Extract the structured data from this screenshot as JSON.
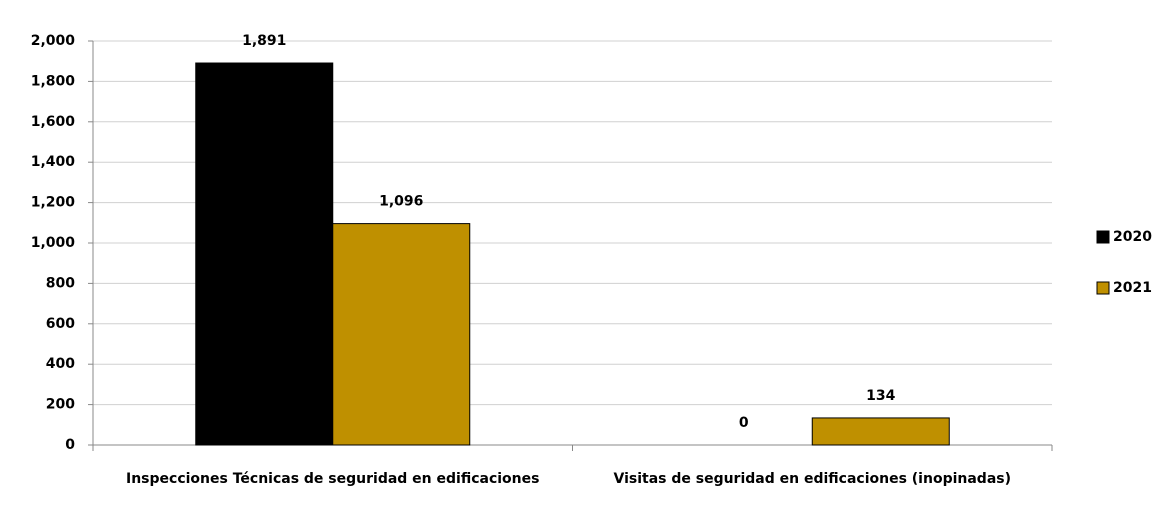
{
  "chart_data": {
    "type": "bar",
    "categories": [
      "Inspecciones Técnicas de seguridad en edificaciones",
      "Visitas de seguridad en edificaciones (inopinadas)"
    ],
    "series": [
      {
        "name": "2020",
        "color": "#000000",
        "values": [
          1891,
          0
        ],
        "value_labels": [
          "1,891",
          "0"
        ]
      },
      {
        "name": "2021",
        "color": "#bf9000",
        "values": [
          1096,
          134
        ],
        "value_labels": [
          "1,096",
          "134"
        ]
      }
    ],
    "ylim": [
      0,
      2000
    ],
    "yticks": [
      0,
      200,
      400,
      600,
      800,
      {
        "value": 1000,
        "label": "1,000"
      },
      {
        "value": 1200,
        "label": "1,200"
      },
      {
        "value": 1400,
        "label": "1,400"
      },
      {
        "value": 1600,
        "label": "1,600"
      },
      {
        "value": 1800,
        "label": "1,800"
      },
      {
        "value": 2000,
        "label": "2,000"
      }
    ],
    "grid": true,
    "legend": "right"
  }
}
